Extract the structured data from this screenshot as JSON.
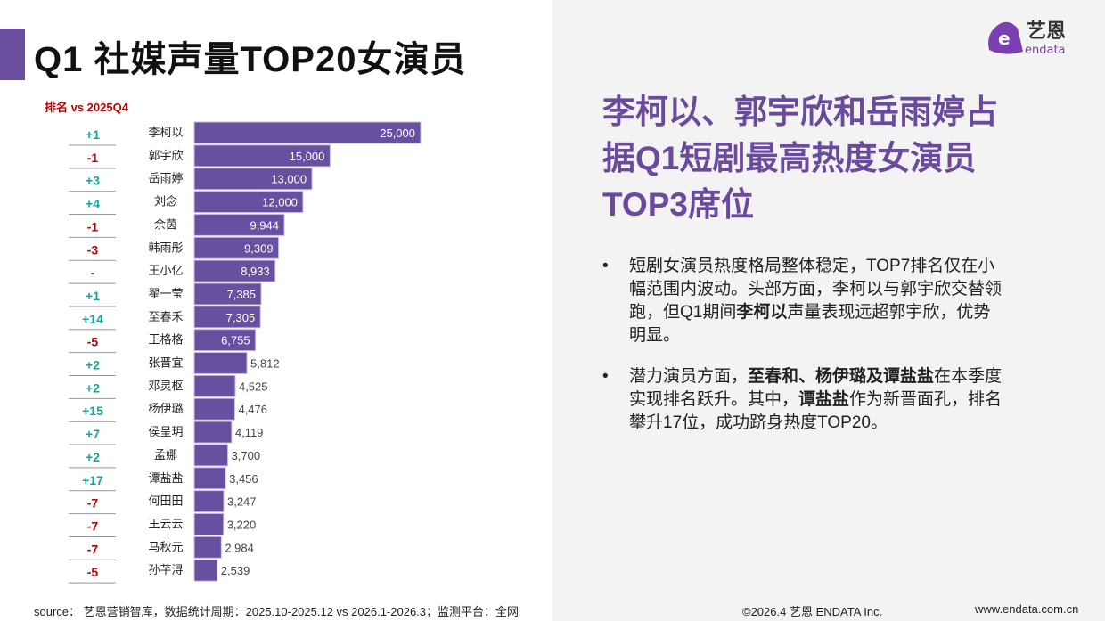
{
  "title": "Q1 社媒声量TOP20女演员",
  "rank_header": "排名 vs 2025Q4",
  "logo": {
    "cn": "艺恩",
    "en": "endata"
  },
  "colors": {
    "bar": "#6750a0",
    "up": "#14a89a",
    "down": "#c00000",
    "neutral": "#222222",
    "headline": "#6a4a9c"
  },
  "chart_data": {
    "type": "bar",
    "orientation": "horizontal",
    "categories": [
      "李柯以",
      "郭宇欣",
      "岳雨婷",
      "刘念",
      "余茵",
      "韩雨彤",
      "王小亿",
      "翟一莹",
      "至春禾",
      "王格格",
      "张晋宜",
      "邓灵枢",
      "杨伊璐",
      "侯呈玥",
      "孟娜",
      "谭盐盐",
      "何田田",
      "王云云",
      "马秋元",
      "孙芊浔"
    ],
    "values": [
      25000,
      15000,
      13000,
      12000,
      9944,
      9309,
      8933,
      7385,
      7305,
      6755,
      5812,
      4525,
      4476,
      4119,
      3700,
      3456,
      3247,
      3220,
      2984,
      2539
    ],
    "value_labels": [
      "25,000",
      "15,000",
      "13,000",
      "12,000",
      "9,944",
      "9,309",
      "8,933",
      "7,385",
      "7,305",
      "6,755",
      "5,812",
      "4,525",
      "4,476",
      "4,119",
      "3,700",
      "3,456",
      "3,247",
      "3,220",
      "2,984",
      "2,539"
    ],
    "rank_change": [
      "+1",
      "-1",
      "+3",
      "+4",
      "-1",
      "-3",
      "-",
      "+1",
      "+14",
      "-5",
      "+2",
      "+2",
      "+15",
      "+7",
      "+2",
      "+17",
      "-7",
      "-7",
      "-7",
      "-5"
    ],
    "xlim": [
      0,
      25000
    ]
  },
  "headline": "李柯以、郭宇欣和岳雨婷占据Q1短剧最高热度女演员TOP3席位",
  "bullets": [
    {
      "parts": [
        {
          "t": "短剧女演员热度格局整体稳定，TOP7排名仅在小幅范围内波动。头部方面，李柯以与郭宇欣交替领跑，但Q1期间",
          "b": false
        },
        {
          "t": "李柯以",
          "b": true
        },
        {
          "t": "声量表现远超郭宇欣，优势明显。",
          "b": false
        }
      ]
    },
    {
      "parts": [
        {
          "t": "潜力演员方面，",
          "b": false
        },
        {
          "t": "至春和、杨伊璐及谭盐盐",
          "b": true
        },
        {
          "t": "在本季度实现排名跃升。其中，",
          "b": false
        },
        {
          "t": "谭盐盐",
          "b": true
        },
        {
          "t": "作为新晋面孔，排名攀升17位，成功跻身热度TOP20。",
          "b": false
        }
      ]
    }
  ],
  "footer": {
    "source": "source： 艺恩营销智库，数据统计周期：2025.10-2025.12 vs 2026.1-2026.3；监测平台：全网",
    "copyright": "©2026.4  艺恩 ENDATA Inc.",
    "url": "www.endata.com.cn"
  }
}
